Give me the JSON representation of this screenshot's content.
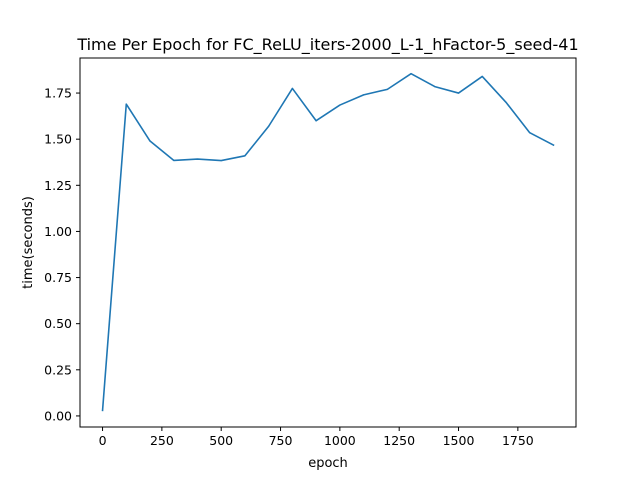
{
  "chart_data": {
    "type": "line",
    "title": "Time Per Epoch for FC_ReLU_iters-2000_L-1_hFactor-5_seed-41",
    "xlabel": "epoch",
    "ylabel": "time(seconds)",
    "xlim": [
      -95,
      1995
    ],
    "ylim": [
      -0.06,
      1.94
    ],
    "xticks": [
      0,
      250,
      500,
      750,
      1000,
      1250,
      1500,
      1750
    ],
    "xtick_labels": [
      "0",
      "250",
      "500",
      "750",
      "1000",
      "1250",
      "1500",
      "1750"
    ],
    "yticks": [
      0.0,
      0.25,
      0.5,
      0.75,
      1.0,
      1.25,
      1.5,
      1.75
    ],
    "ytick_labels": [
      "0.00",
      "0.25",
      "0.50",
      "0.75",
      "1.00",
      "1.25",
      "1.50",
      "1.75"
    ],
    "grid": false,
    "series": [
      {
        "name": "time",
        "color": "#1f77b4",
        "x": [
          0,
          100,
          200,
          300,
          400,
          500,
          600,
          700,
          800,
          900,
          1000,
          1100,
          1200,
          1300,
          1400,
          1500,
          1600,
          1700,
          1800,
          1900
        ],
        "y": [
          0.03,
          1.69,
          1.49,
          1.385,
          1.392,
          1.384,
          1.41,
          1.57,
          1.775,
          1.6,
          1.685,
          1.74,
          1.77,
          1.855,
          1.785,
          1.75,
          1.84,
          1.7,
          1.535,
          1.468
        ]
      }
    ]
  }
}
